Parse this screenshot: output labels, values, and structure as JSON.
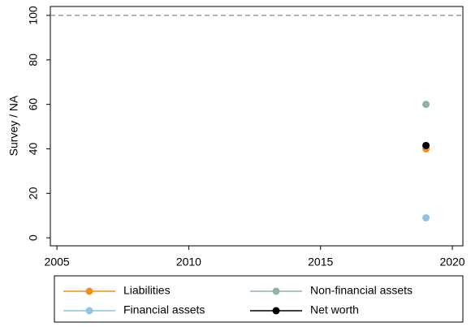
{
  "chart_data": {
    "type": "scatter",
    "y_label": "Survey / NA",
    "x": [
      2019
    ],
    "series": [
      {
        "name": "Liabilities",
        "color": "#f28e1c",
        "values": [
          40
        ]
      },
      {
        "name": "Non-financial assets",
        "color": "#90b4a4",
        "values": [
          60
        ]
      },
      {
        "name": "Financial assets",
        "color": "#8ec4e6",
        "values": [
          9
        ]
      },
      {
        "name": "Net worth",
        "color": "#000000",
        "values": [
          41.5
        ]
      }
    ],
    "reference_line": 100,
    "xlim": [
      2004.75,
      2020.4
    ],
    "xticks": [
      2005,
      2010,
      2015,
      2020
    ],
    "ylim": [
      -3.6,
      104
    ],
    "yticks": [
      0,
      20,
      40,
      60,
      80,
      100
    ],
    "legend": "bottom"
  }
}
